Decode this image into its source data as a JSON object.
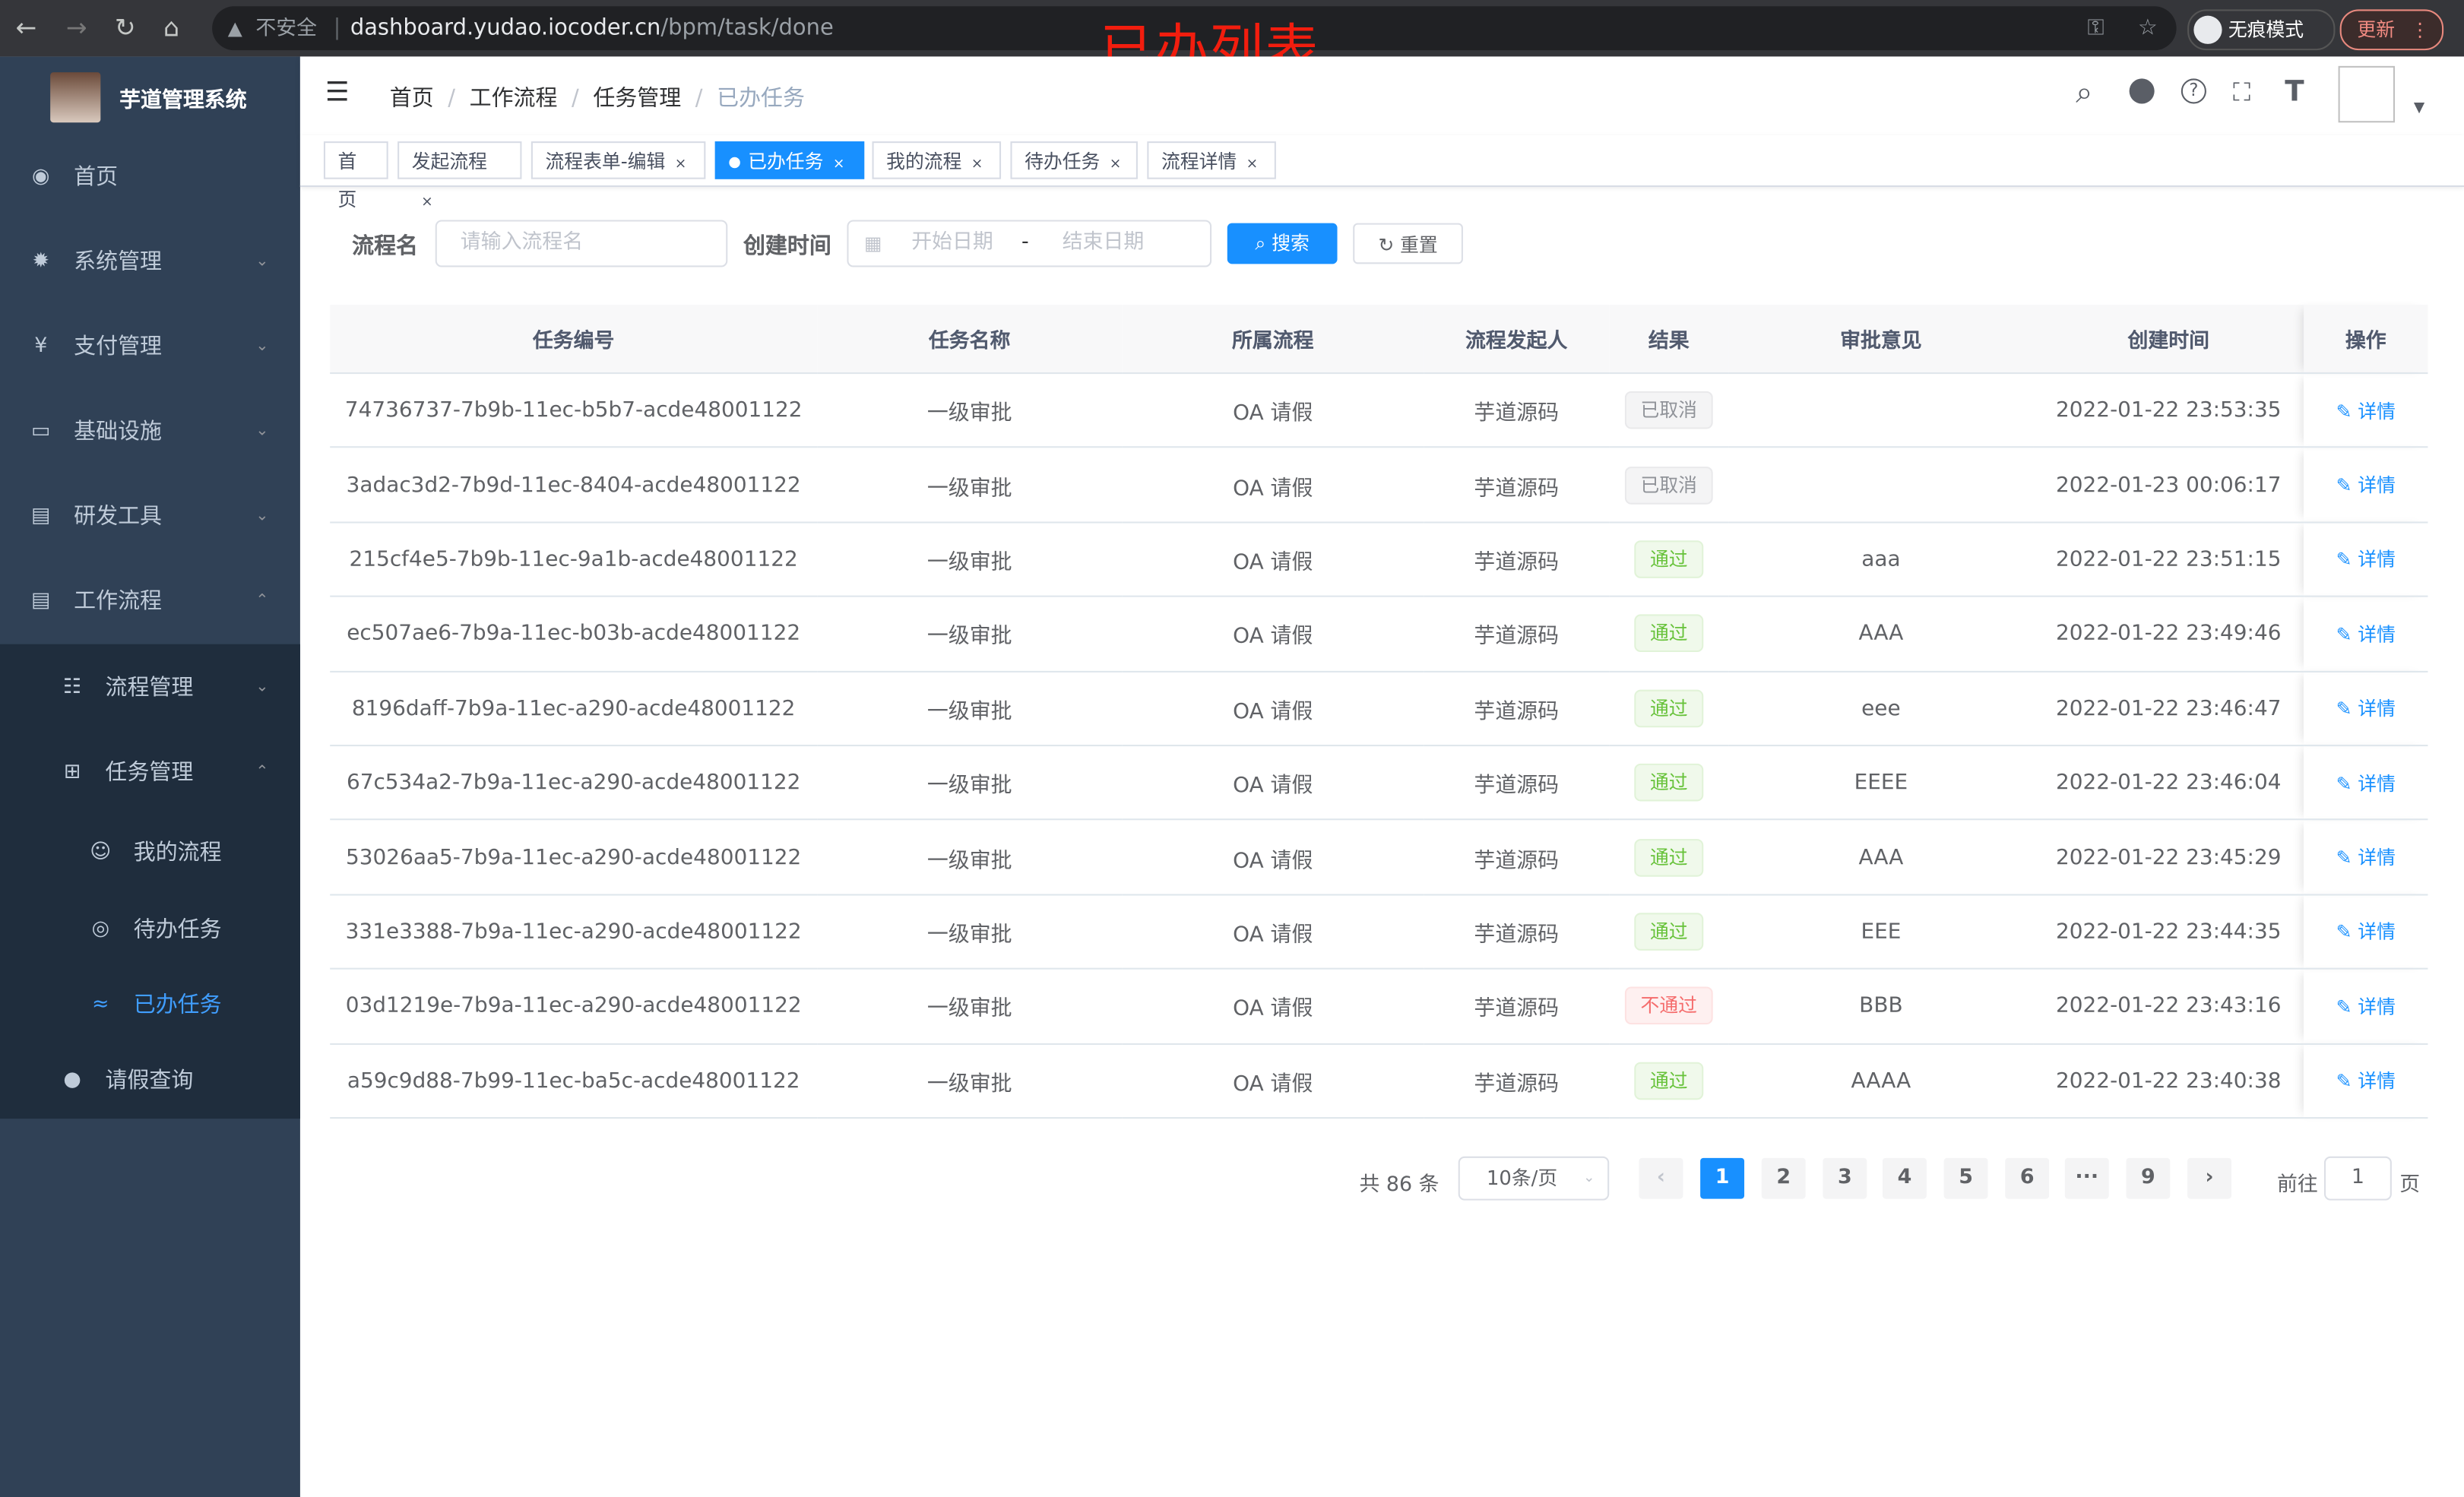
{
  "browser": {
    "insecure_label": "不安全",
    "url_host": "dashboard.yudao.iocoder.cn",
    "url_path": "/bpm/task/done",
    "incognito_label": "无痕模式",
    "update_label": "更新"
  },
  "annotation": "已办列表",
  "sidebar": {
    "title": "芋道管理系统",
    "items": [
      {
        "label": "首页",
        "icon": "dashboard-icon"
      },
      {
        "label": "系统管理",
        "icon": "gear-icon"
      },
      {
        "label": "支付管理",
        "icon": "yen-icon"
      },
      {
        "label": "基础设施",
        "icon": "monitor-icon"
      },
      {
        "label": "研发工具",
        "icon": "toolbox-icon"
      },
      {
        "label": "工作流程",
        "icon": "toolbox-icon"
      },
      {
        "label": "流程管理",
        "icon": "list-icon"
      },
      {
        "label": "任务管理",
        "icon": "tree-icon"
      },
      {
        "label": "我的流程",
        "icon": "people-icon"
      },
      {
        "label": "待办任务",
        "icon": "eye-icon"
      },
      {
        "label": "已办任务",
        "icon": "eye-closed-icon"
      },
      {
        "label": "请假查询",
        "icon": "user-icon"
      }
    ],
    "active_color": "#409eff"
  },
  "breadcrumb": [
    "首页",
    "工作流程",
    "任务管理",
    "已办任务"
  ],
  "tags": [
    {
      "label": "首页"
    },
    {
      "label": "发起流程"
    },
    {
      "label": "流程表单-编辑"
    },
    {
      "label": "已办任务"
    },
    {
      "label": "我的流程"
    },
    {
      "label": "待办任务"
    },
    {
      "label": "流程详情"
    }
  ],
  "search": {
    "name_label": "流程名",
    "name_placeholder": "请输入流程名",
    "time_label": "创建时间",
    "start_placeholder": "开始日期",
    "range_sep": "-",
    "end_placeholder": "结束日期",
    "search_btn": "搜索",
    "reset_btn": "重置"
  },
  "table": {
    "headers": [
      "任务编号",
      "任务名称",
      "所属流程",
      "流程发起人",
      "结果",
      "审批意见",
      "创建时间",
      "操作"
    ],
    "action_label": "详情",
    "rows": [
      {
        "id": "74736737-7b9b-11ec-b5b7-acde48001122",
        "name": "一级审批",
        "process": "OA 请假",
        "starter": "芋道源码",
        "result": "已取消",
        "status": "info",
        "comment": "",
        "time": "2022-01-22 23:53:35"
      },
      {
        "id": "3adac3d2-7b9d-11ec-8404-acde48001122",
        "name": "一级审批",
        "process": "OA 请假",
        "starter": "芋道源码",
        "result": "已取消",
        "status": "info",
        "comment": "",
        "time": "2022-01-23 00:06:17"
      },
      {
        "id": "215cf4e5-7b9b-11ec-9a1b-acde48001122",
        "name": "一级审批",
        "process": "OA 请假",
        "starter": "芋道源码",
        "result": "通过",
        "status": "success",
        "comment": "aaa",
        "time": "2022-01-22 23:51:15"
      },
      {
        "id": "ec507ae6-7b9a-11ec-b03b-acde48001122",
        "name": "一级审批",
        "process": "OA 请假",
        "starter": "芋道源码",
        "result": "通过",
        "status": "success",
        "comment": "AAA",
        "time": "2022-01-22 23:49:46"
      },
      {
        "id": "8196daff-7b9a-11ec-a290-acde48001122",
        "name": "一级审批",
        "process": "OA 请假",
        "starter": "芋道源码",
        "result": "通过",
        "status": "success",
        "comment": "eee",
        "time": "2022-01-22 23:46:47"
      },
      {
        "id": "67c534a2-7b9a-11ec-a290-acde48001122",
        "name": "一级审批",
        "process": "OA 请假",
        "starter": "芋道源码",
        "result": "通过",
        "status": "success",
        "comment": "EEEE",
        "time": "2022-01-22 23:46:04"
      },
      {
        "id": "53026aa5-7b9a-11ec-a290-acde48001122",
        "name": "一级审批",
        "process": "OA 请假",
        "starter": "芋道源码",
        "result": "通过",
        "status": "success",
        "comment": "AAA",
        "time": "2022-01-22 23:45:29"
      },
      {
        "id": "331e3388-7b9a-11ec-a290-acde48001122",
        "name": "一级审批",
        "process": "OA 请假",
        "starter": "芋道源码",
        "result": "通过",
        "status": "success",
        "comment": "EEE",
        "time": "2022-01-22 23:44:35"
      },
      {
        "id": "03d1219e-7b9a-11ec-a290-acde48001122",
        "name": "一级审批",
        "process": "OA 请假",
        "starter": "芋道源码",
        "result": "不通过",
        "status": "danger",
        "comment": "BBB",
        "time": "2022-01-22 23:43:16"
      },
      {
        "id": "a59c9d88-7b99-11ec-ba5c-acde48001122",
        "name": "一级审批",
        "process": "OA 请假",
        "starter": "芋道源码",
        "result": "通过",
        "status": "success",
        "comment": "AAAA",
        "time": "2022-01-22 23:40:38"
      }
    ]
  },
  "status_colors": {
    "info": {
      "bg": "#f4f4f5",
      "border": "#e9e9eb",
      "fg": "#909399"
    },
    "success": {
      "bg": "#f0f9eb",
      "border": "#e1f3d8",
      "fg": "#67c23a"
    },
    "danger": {
      "bg": "#fef0f0",
      "border": "#fde2e2",
      "fg": "#f56c6c"
    }
  },
  "pagination": {
    "total_text": "共 86 条",
    "page_size": "10条/页",
    "pages": [
      "1",
      "2",
      "3",
      "4",
      "5",
      "6",
      "···",
      "9"
    ],
    "current": "1",
    "goto_label": "前往",
    "goto_value": "1",
    "page_suffix": "页"
  }
}
